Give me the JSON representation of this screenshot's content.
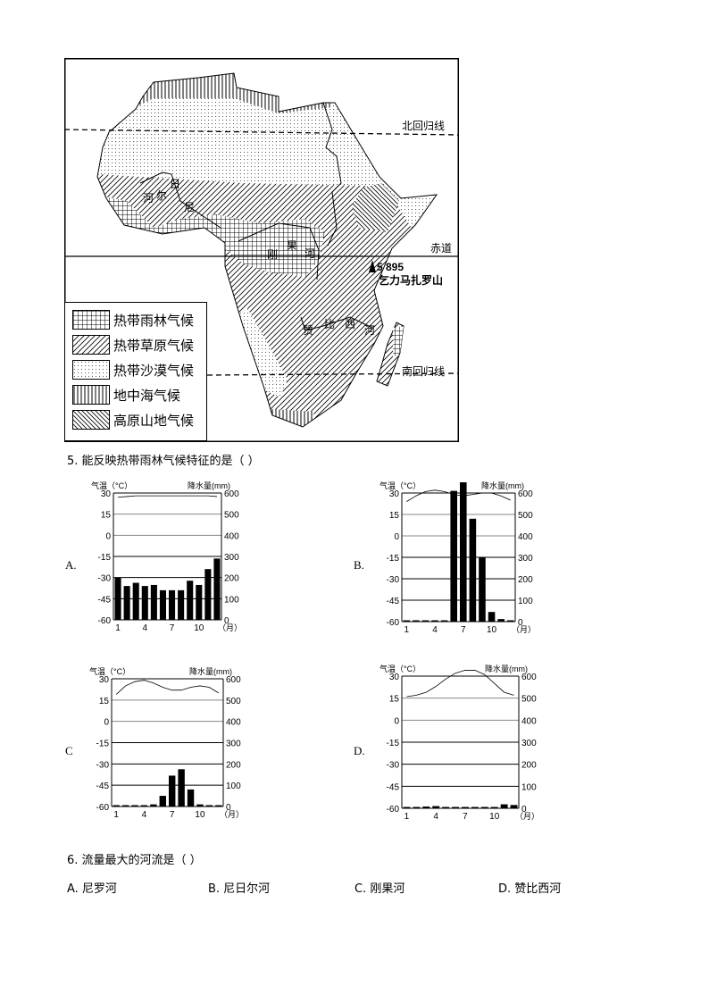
{
  "map": {
    "lines": {
      "tropic_north": "北回归线",
      "equator": "赤道",
      "tropic_south": "南回归线"
    },
    "rivers": {
      "niger": [
        "日",
        "尔",
        "河",
        "尼"
      ],
      "congo": [
        "刚",
        "果",
        "河"
      ],
      "zambezi": [
        "赞",
        "比",
        "西",
        "河"
      ]
    },
    "mountain": {
      "elevation": "5 895",
      "name": "乞力马扎罗山"
    },
    "legend": [
      {
        "label": "热带雨林气候",
        "pattern": "grid"
      },
      {
        "label": "热带草原气候",
        "pattern": "diag"
      },
      {
        "label": "热带沙漠气候",
        "pattern": "dots"
      },
      {
        "label": "地中海气候",
        "pattern": "vert"
      },
      {
        "label": "高原山地气候",
        "pattern": "backdiag"
      }
    ]
  },
  "question5": {
    "text": "5. 能反映热带雨林气候特征的是（    ）"
  },
  "question6": {
    "text": "6. 流量最大的河流是（    ）",
    "options": [
      "A. 尼罗河",
      "B. 尼日尔河",
      "C. 刚果河",
      "D. 赞比西河"
    ]
  },
  "chart_data": [
    {
      "type": "bar+line",
      "option": "A.",
      "title_left": "气温（°C）",
      "title_right": "降水量(mm)",
      "month_unit": "（月）",
      "x_ticks": [
        "1",
        "4",
        "7",
        "10"
      ],
      "temp_ticks": [
        "30",
        "15",
        "0",
        "-15",
        "-30",
        "-45",
        "-60"
      ],
      "precip_ticks": [
        "600",
        "500",
        "400",
        "300",
        "200",
        "100",
        "0"
      ],
      "temp_range": [
        -60,
        30
      ],
      "precip_range": [
        0,
        600
      ],
      "precip": [
        200,
        160,
        175,
        160,
        165,
        140,
        140,
        140,
        185,
        165,
        240,
        290
      ],
      "temp": [
        27,
        27.5,
        28,
        28,
        28,
        28,
        28,
        28,
        28,
        28,
        28,
        27.5
      ]
    },
    {
      "type": "bar+line",
      "option": "B.",
      "title_left": "气温（°C）",
      "title_right": "降水量(mm)",
      "month_unit": "（月）",
      "x_ticks": [
        "1",
        "4",
        "7",
        "10"
      ],
      "temp_ticks": [
        "30",
        "15",
        "0",
        "-15",
        "-30",
        "-45",
        "-60"
      ],
      "precip_ticks": [
        "600",
        "500",
        "400",
        "300",
        "200",
        "100",
        "0"
      ],
      "temp_range": [
        -60,
        30
      ],
      "precip_range": [
        0,
        600
      ],
      "precip": [
        2,
        2,
        2,
        2,
        5,
        610,
        650,
        480,
        300,
        45,
        12,
        2
      ],
      "temp": [
        24,
        28,
        31,
        32,
        31,
        29,
        28,
        29,
        30,
        30,
        28,
        25
      ]
    },
    {
      "type": "bar+line",
      "option": "C",
      "title_left": "气温（°C）",
      "title_right": "降水量(mm)",
      "month_unit": "（月）",
      "x_ticks": [
        "1",
        "4",
        "7",
        "10"
      ],
      "temp_ticks": [
        "30",
        "15",
        "0",
        "-15",
        "-30",
        "-45",
        "-60"
      ],
      "precip_ticks": [
        "600",
        "500",
        "400",
        "300",
        "200",
        "100",
        "0"
      ],
      "temp_range": [
        -60,
        30
      ],
      "precip_range": [
        0,
        600
      ],
      "precip": [
        0,
        0,
        0,
        0,
        10,
        50,
        145,
        175,
        80,
        10,
        0,
        0
      ],
      "temp": [
        19,
        25,
        28,
        29,
        27,
        24,
        22,
        22,
        24,
        25,
        24,
        20
      ]
    },
    {
      "type": "bar+line",
      "option": "D.",
      "title_left": "气温（°C）",
      "title_right": "降水量(mm)",
      "month_unit": "（月）",
      "x_ticks": [
        "1",
        "4",
        "7",
        "10"
      ],
      "temp_ticks": [
        "30",
        "15",
        "0",
        "-15",
        "-30",
        "-45",
        "-60"
      ],
      "precip_ticks": [
        "600",
        "500",
        "400",
        "300",
        "200",
        "100",
        "0"
      ],
      "temp_range": [
        -60,
        30
      ],
      "precip_range": [
        0,
        600
      ],
      "precip": [
        2,
        2,
        8,
        10,
        4,
        0,
        0,
        5,
        0,
        5,
        18,
        15
      ],
      "temp": [
        16,
        17,
        19,
        23,
        28,
        32,
        34,
        34,
        31,
        25,
        19,
        17
      ]
    }
  ]
}
